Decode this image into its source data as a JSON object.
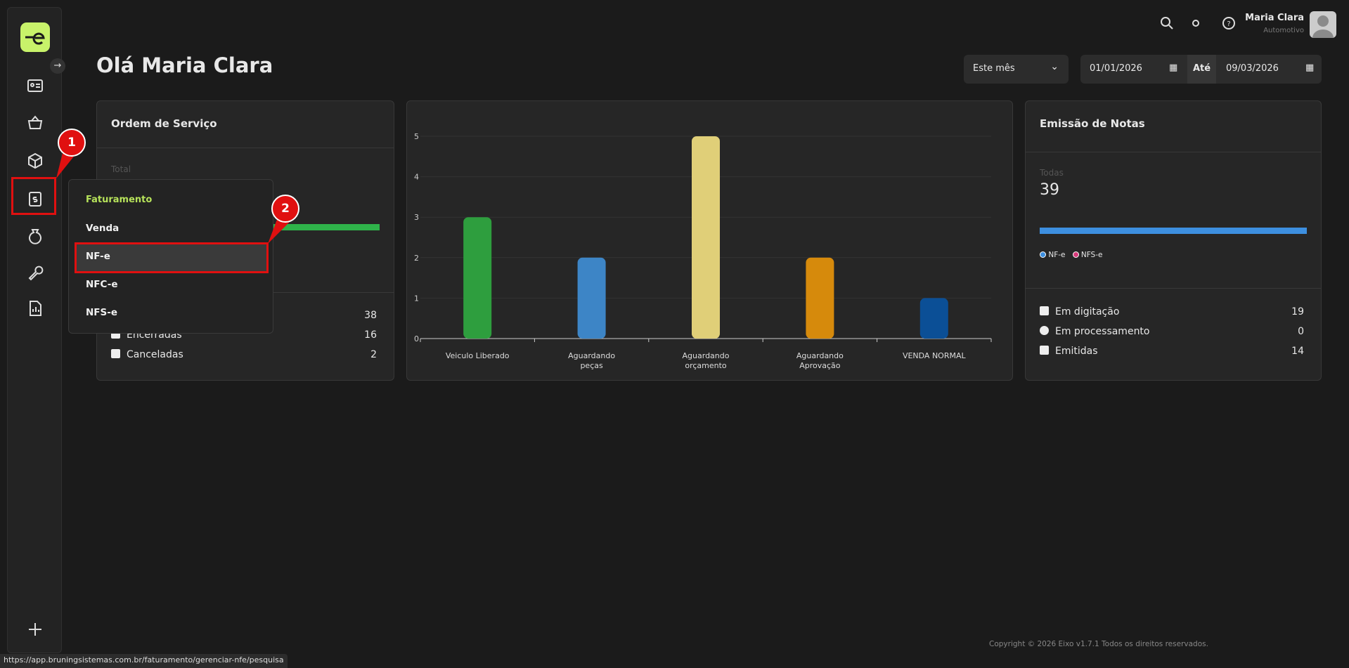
{
  "user": {
    "name": "Maria Clara",
    "role": "Automotivo"
  },
  "greeting": "Olá Maria Clara",
  "filters": {
    "period": "Este mês",
    "from": "01/01/2026",
    "to_label": "Até",
    "to": "09/03/2026"
  },
  "service_orders": {
    "title": "Ordem de Serviço",
    "total_label": "Total",
    "rows": [
      {
        "value": 38
      },
      {
        "label": "Encerradas",
        "value": 16
      },
      {
        "label": "Canceladas",
        "value": 2
      }
    ]
  },
  "menu": {
    "title": "Faturamento",
    "items": [
      "Venda",
      "NF-e",
      "NFC-e",
      "NFS-e"
    ]
  },
  "annotations": [
    "1",
    "2"
  ],
  "chart_data": {
    "type": "bar",
    "categories": [
      "Veiculo Liberado",
      "Aguardando peças",
      "Aguardando orçamento",
      "Aguardando Aprovação",
      "VENDA NORMAL"
    ],
    "values": [
      3,
      2,
      5,
      2,
      1
    ],
    "colors": [
      "#2e9e3e",
      "#3d85c6",
      "#e0cf78",
      "#d68a0c",
      "#0b4f96"
    ],
    "ylim": [
      0,
      5
    ],
    "yticks": [
      0,
      1,
      2,
      3,
      4,
      5
    ],
    "grid": true
  },
  "invoices": {
    "title": "Emissão de Notas",
    "total_label": "Todas",
    "total": 39,
    "legend": [
      "NF-e",
      "NFS-e"
    ],
    "rows": [
      {
        "label": "Em digitação",
        "value": 19
      },
      {
        "label": "Em processamento",
        "value": 0
      },
      {
        "label": "Emitidas",
        "value": 14
      }
    ]
  },
  "footer": "Copyright © 2026 Eixo v1.7.1 Todos os direitos reservados.",
  "status_url": "https://app.bruningsistemas.com.br/faturamento/gerenciar-nfe/pesquisa"
}
